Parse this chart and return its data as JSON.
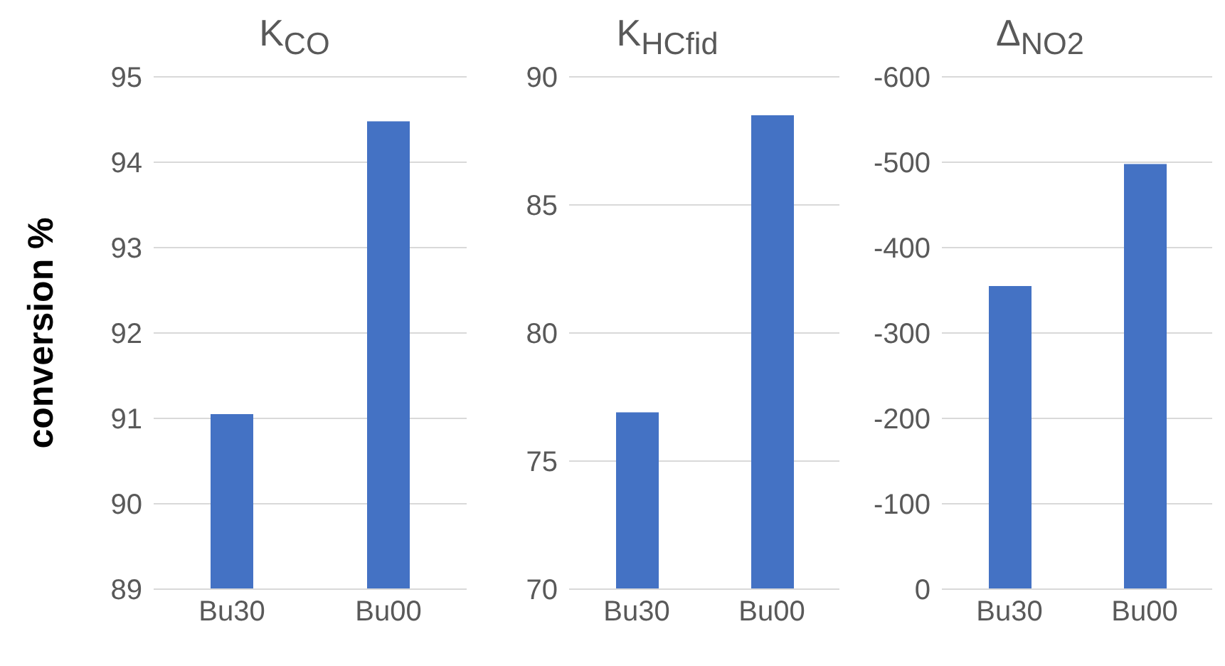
{
  "chart_data": [
    {
      "type": "bar",
      "title": "K$_{CO}$",
      "ylabel": "conversion %",
      "categories": [
        "Bu30",
        "Bu00"
      ],
      "values": [
        91.05,
        94.48
      ],
      "color": "#4472c4",
      "ylim": [
        89,
        95
      ],
      "yticks": [
        89,
        90,
        91,
        92,
        93,
        94,
        95
      ],
      "grid": "y"
    },
    {
      "type": "bar",
      "title": "K$_{HCfid}$",
      "categories": [
        "Bu30",
        "Bu00"
      ],
      "values": [
        76.9,
        88.5
      ],
      "color": "#4472c4",
      "ylim": [
        70,
        90
      ],
      "yticks": [
        70,
        75,
        80,
        85,
        90
      ],
      "grid": "y"
    },
    {
      "type": "bar",
      "title": "Δ$_{NO2}$",
      "categories": [
        "Bu30",
        "Bu00"
      ],
      "values": [
        -355,
        -498
      ],
      "color": "#4472c4",
      "ylim": [
        0,
        -600
      ],
      "yticks": [
        0,
        -100,
        -200,
        -300,
        -400,
        -500,
        -600
      ],
      "grid": "y"
    }
  ]
}
